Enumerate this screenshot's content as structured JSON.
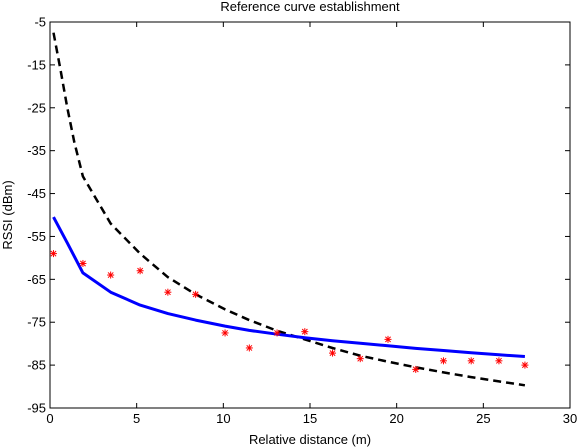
{
  "chart_data": {
    "type": "line",
    "title": "Reference curve establishment",
    "xlabel": "Relative distance (m)",
    "ylabel": "RSSI (dBm)",
    "xlim": [
      0,
      30
    ],
    "ylim": [
      -95,
      -5
    ],
    "xticks": [
      0,
      5,
      10,
      15,
      20,
      25,
      30
    ],
    "yticks": [
      -5,
      -15,
      -25,
      -35,
      -45,
      -55,
      -65,
      -75,
      -85,
      -95
    ],
    "grid": false,
    "legend": "none",
    "series": [
      {
        "style": "dashed",
        "color": "#000000",
        "x": [
          0.2,
          0.6,
          1.0,
          1.4,
          1.9,
          3.5,
          5.2,
          6.8,
          8.4,
          10.1,
          11.5,
          13.1,
          14.7,
          16.3,
          17.9,
          19.5,
          21.1,
          22.7,
          24.3,
          25.9,
          27.4
        ],
        "y": [
          -7.5,
          -16,
          -25,
          -33,
          -41,
          -52,
          -59,
          -64.5,
          -68.5,
          -72,
          -74.5,
          -77,
          -79,
          -81,
          -82.8,
          -84.2,
          -85.5,
          -86.7,
          -87.8,
          -88.8,
          -89.7
        ]
      },
      {
        "style": "solid",
        "color": "#0000ff",
        "x": [
          0.2,
          1.0,
          1.9,
          3.5,
          5.2,
          6.8,
          8.4,
          10.1,
          11.5,
          13.1,
          14.7,
          16.3,
          17.9,
          19.5,
          21.1,
          22.7,
          24.3,
          25.9,
          27.4
        ],
        "y": [
          -50.5,
          -56.5,
          -63.5,
          -68,
          -71,
          -73,
          -74.5,
          -75.9,
          -76.9,
          -77.8,
          -78.6,
          -79.3,
          -79.9,
          -80.5,
          -81.1,
          -81.6,
          -82.1,
          -82.6,
          -83
        ]
      },
      {
        "style": "markers",
        "marker": "*",
        "color": "#ff0000",
        "x": [
          0.2,
          1.9,
          3.5,
          5.2,
          6.8,
          8.4,
          10.1,
          11.5,
          13.1,
          14.7,
          16.3,
          17.9,
          19.5,
          21.1,
          22.7,
          24.3,
          25.9,
          27.4
        ],
        "y": [
          -59,
          -61.3,
          -64,
          -63,
          -68,
          -68.5,
          -77.5,
          -81,
          -77.5,
          -77.2,
          -82.2,
          -83.5,
          -79,
          -86,
          -84,
          -84,
          -84,
          -85
        ]
      }
    ]
  }
}
